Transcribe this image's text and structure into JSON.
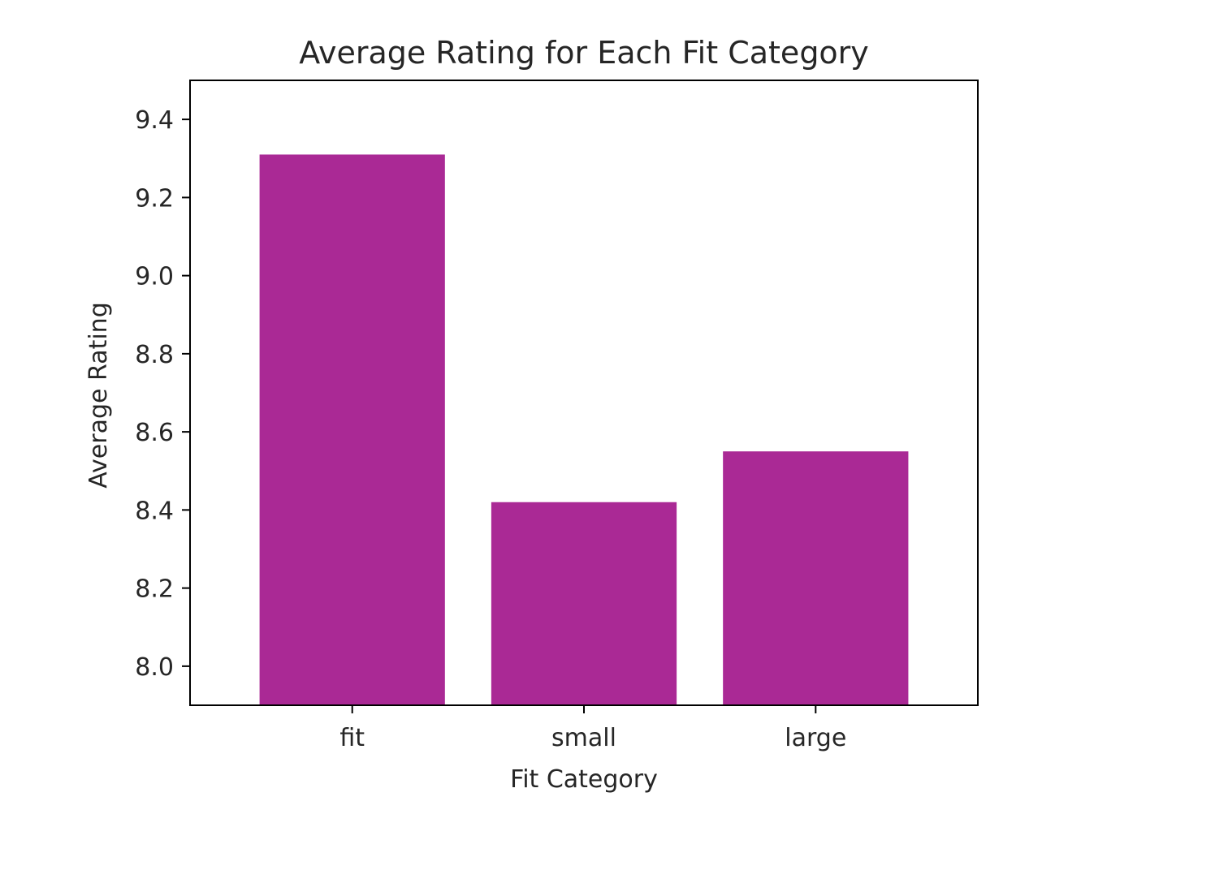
{
  "chart_data": {
    "type": "bar",
    "title": "Average Rating for Each Fit Category",
    "xlabel": "Fit Category",
    "ylabel": "Average Rating",
    "categories": [
      "fit",
      "small",
      "large"
    ],
    "values": [
      9.31,
      8.42,
      8.55
    ],
    "ylim": [
      7.9,
      9.5
    ],
    "yticks": [
      "8.0",
      "8.2",
      "8.4",
      "8.6",
      "8.8",
      "9.0",
      "9.2",
      "9.4"
    ],
    "bar_color": "#aa2995",
    "grid": false,
    "legend": "none"
  }
}
